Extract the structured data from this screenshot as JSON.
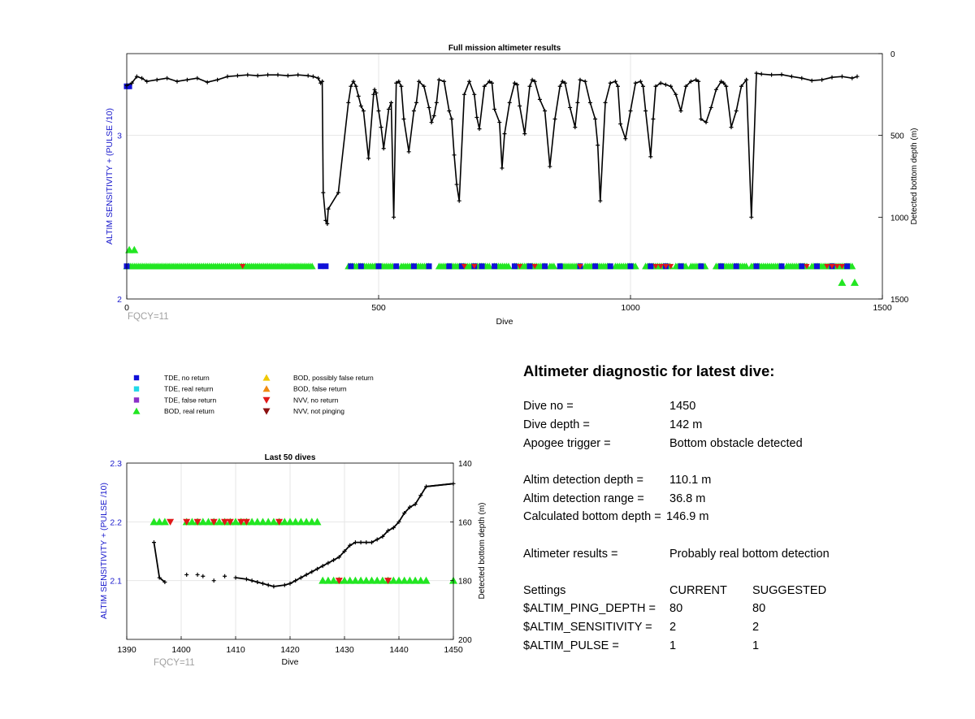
{
  "chart_data": [
    {
      "type": "scatter",
      "title": "Full mission altimeter results",
      "xlabel": "Dive",
      "ylabel": "ALTIM SENSITIVITY + (PULSE /10)",
      "y2label": "Detected bottom depth (m)",
      "xlim": [
        0,
        1500
      ],
      "ylim": [
        2,
        3.5
      ],
      "y2lim": [
        0,
        1500
      ],
      "y2_reversed": true,
      "xticks": [
        "0",
        "500",
        "1000",
        "1500"
      ],
      "yticks": [
        "2",
        "3"
      ],
      "y2ticks": [
        "0",
        "500",
        "1000",
        "1500"
      ],
      "grid": true,
      "fqcy_label": "FQCY=11",
      "series": [
        {
          "name": "Detected bottom depth",
          "axis": "right",
          "x": [
            0,
            10,
            20,
            30,
            40,
            60,
            80,
            100,
            120,
            140,
            160,
            180,
            200,
            220,
            240,
            260,
            280,
            300,
            320,
            340,
            360,
            370,
            380,
            385,
            388,
            390,
            395,
            398,
            400,
            420,
            440,
            445,
            450,
            455,
            460,
            465,
            470,
            480,
            490,
            492,
            495,
            500,
            505,
            510,
            520,
            525,
            530,
            535,
            540,
            545,
            550,
            560,
            570,
            575,
            580,
            590,
            600,
            605,
            610,
            615,
            620,
            630,
            640,
            645,
            650,
            655,
            660,
            670,
            680,
            690,
            695,
            700,
            710,
            720,
            725,
            730,
            740,
            745,
            750,
            760,
            770,
            775,
            780,
            790,
            800,
            805,
            810,
            820,
            830,
            840,
            850,
            860,
            865,
            870,
            880,
            890,
            895,
            900,
            910,
            920,
            930,
            935,
            940,
            950,
            960,
            970,
            975,
            980,
            990,
            1000,
            1010,
            1020,
            1025,
            1030,
            1040,
            1045,
            1050,
            1060,
            1070,
            1080,
            1090,
            1100,
            1110,
            1120,
            1130,
            1135,
            1140,
            1150,
            1160,
            1170,
            1180,
            1185,
            1190,
            1200,
            1210,
            1220,
            1230,
            1240,
            1250,
            1260,
            1280,
            1300,
            1320,
            1340,
            1360,
            1380,
            1400,
            1420,
            1440,
            1450
          ],
          "y": [
            195,
            180,
            140,
            150,
            170,
            160,
            150,
            170,
            160,
            150,
            175,
            160,
            140,
            135,
            130,
            135,
            130,
            130,
            135,
            130,
            135,
            140,
            150,
            180,
            170,
            850,
            1020,
            1040,
            950,
            850,
            300,
            200,
            170,
            200,
            260,
            320,
            350,
            640,
            250,
            220,
            240,
            350,
            450,
            580,
            340,
            300,
            1000,
            180,
            170,
            200,
            400,
            600,
            350,
            300,
            170,
            200,
            330,
            420,
            380,
            300,
            160,
            170,
            350,
            400,
            620,
            800,
            900,
            250,
            170,
            250,
            390,
            460,
            200,
            170,
            180,
            340,
            420,
            700,
            490,
            300,
            180,
            190,
            320,
            490,
            200,
            160,
            170,
            280,
            350,
            690,
            400,
            200,
            170,
            180,
            330,
            450,
            300,
            160,
            170,
            300,
            400,
            560,
            900,
            300,
            180,
            170,
            200,
            430,
            520,
            350,
            180,
            170,
            200,
            350,
            630,
            400,
            200,
            180,
            190,
            200,
            250,
            350,
            200,
            170,
            160,
            170,
            400,
            420,
            330,
            220,
            170,
            180,
            200,
            450,
            350,
            200,
            160,
            1000,
            120,
            125,
            130,
            128,
            140,
            150,
            165,
            160,
            145,
            140,
            150,
            140
          ],
          "color": "#000000"
        }
      ],
      "legend": [
        {
          "label": "TDE, no return",
          "color": "#1010d8",
          "marker": "square"
        },
        {
          "label": "TDE, real return",
          "color": "#20d8e8",
          "marker": "square"
        },
        {
          "label": "TDE, false return",
          "color": "#8a30c8",
          "marker": "square"
        },
        {
          "label": "BOD, real return",
          "color": "#22e622",
          "marker": "triangle-up"
        },
        {
          "label": "BOD, possibly false return",
          "color": "#f0c800",
          "marker": "triangle-up"
        },
        {
          "label": "BOD, false return",
          "color": "#f08a10",
          "marker": "triangle-up"
        },
        {
          "label": "NVV, no return",
          "color": "#e01818",
          "marker": "triangle-down"
        },
        {
          "label": "NVV, not pinging",
          "color": "#8b1010",
          "marker": "triangle-down"
        }
      ],
      "markers": {
        "bod_green": {
          "y": 2.2,
          "segments": [
            [
              0,
              370
            ],
            [
              440,
              460
            ],
            [
              460,
              495
            ],
            [
              495,
              530
            ],
            [
              545,
              570
            ],
            [
              575,
              600
            ],
            [
              620,
              700
            ],
            [
              700,
              720
            ],
            [
              730,
              760
            ],
            [
              770,
              830
            ],
            [
              840,
              850
            ],
            [
              860,
              900
            ],
            [
              910,
              960
            ],
            [
              970,
              1010
            ],
            [
              1030,
              1080
            ],
            [
              1090,
              1110
            ],
            [
              1120,
              1150
            ],
            [
              1170,
              1230
            ],
            [
              1240,
              1300
            ],
            [
              1310,
              1350
            ],
            [
              1360,
              1400
            ],
            [
              1400,
              1440
            ]
          ],
          "extra_y": [
            [
              2.3,
              5
            ],
            [
              2.3,
              15
            ],
            [
              2.1,
              1420
            ],
            [
              2.1,
              1445
            ]
          ]
        },
        "tde_blue": {
          "y": 2.2,
          "x": [
            0,
            385,
            395,
            445,
            465,
            500,
            535,
            570,
            600,
            640,
            665,
            690,
            705,
            730,
            770,
            800,
            830,
            860,
            900,
            930,
            960,
            1000,
            1040,
            1070,
            1100,
            1140,
            1180,
            1210,
            1250,
            1300,
            1340,
            1370,
            1400,
            1430
          ],
          "extra_y": [
            [
              3.3,
              0
            ],
            [
              3.3,
              5
            ]
          ]
        },
        "nvv_red": {
          "y": 2.2,
          "x": [
            230,
            670,
            690,
            780,
            810,
            900,
            1050,
            1060,
            1070,
            1080,
            1350,
            1390,
            1400,
            1410,
            1420
          ]
        }
      }
    },
    {
      "type": "scatter",
      "title": "Last 50 dives",
      "xlabel": "Dive",
      "ylabel": "ALTIM SENSITIVITY + (PULSE /10)",
      "y2label": "Detected bottom depth (m)",
      "xlim": [
        1390,
        1450
      ],
      "ylim": [
        2.0,
        2.3
      ],
      "y2lim": [
        140,
        200
      ],
      "y2_reversed": true,
      "xticks": [
        "1390",
        "1400",
        "1410",
        "1420",
        "1430",
        "1440",
        "1450"
      ],
      "yticks": [
        "2.1",
        "2.2",
        "2.3"
      ],
      "y2ticks": [
        "140",
        "160",
        "180",
        "200"
      ],
      "grid": true,
      "fqcy_label": "FQCY=11",
      "series": [
        {
          "name": "Detected bottom depth",
          "axis": "right",
          "x": [
            1395,
            1396,
            1397,
            1401,
            1403,
            1404,
            1406,
            1408,
            1410,
            1412,
            1413,
            1414,
            1415,
            1416,
            1417,
            1419,
            1420,
            1421,
            1422,
            1423,
            1424,
            1425,
            1426,
            1427,
            1428,
            1429,
            1430,
            1431,
            1432,
            1433,
            1434,
            1435,
            1436,
            1437,
            1438,
            1439,
            1440,
            1441,
            1442,
            1443,
            1444,
            1445,
            1450
          ],
          "y": [
            167,
            179,
            180.5,
            178,
            178,
            178.5,
            180,
            178.5,
            179,
            179.5,
            180,
            180.5,
            181,
            181.5,
            182,
            181.5,
            181,
            180,
            179,
            178,
            177,
            176,
            175,
            174,
            173,
            172,
            170,
            168,
            167,
            167,
            167,
            167,
            166,
            165,
            163,
            162,
            160,
            157,
            155,
            154,
            151,
            148,
            147
          ],
          "color": "#000000"
        },
        {
          "name": "BOD, real return",
          "axis": "left",
          "x": [
            1395,
            1396,
            1397,
            1401,
            1402,
            1403,
            1404,
            1405,
            1406,
            1407,
            1408,
            1409,
            1410,
            1411,
            1412,
            1413,
            1414,
            1415,
            1416,
            1417,
            1418,
            1419,
            1420,
            1421,
            1422,
            1423,
            1424,
            1425,
            1426,
            1427,
            1428,
            1429,
            1430,
            1431,
            1432,
            1433,
            1434,
            1435,
            1436,
            1437,
            1438,
            1439,
            1440,
            1441,
            1442,
            1443,
            1444,
            1445,
            1450
          ],
          "y": [
            2.2,
            2.2,
            2.2,
            2.2,
            2.2,
            2.2,
            2.2,
            2.2,
            2.2,
            2.2,
            2.2,
            2.2,
            2.2,
            2.2,
            2.2,
            2.2,
            2.2,
            2.2,
            2.2,
            2.2,
            2.2,
            2.2,
            2.2,
            2.2,
            2.2,
            2.2,
            2.2,
            2.2,
            2.1,
            2.1,
            2.1,
            2.1,
            2.1,
            2.1,
            2.1,
            2.1,
            2.1,
            2.1,
            2.1,
            2.1,
            2.1,
            2.1,
            2.1,
            2.1,
            2.1,
            2.1,
            2.1,
            2.1,
            2.1
          ],
          "color": "#22e622"
        },
        {
          "name": "NVV, no return",
          "axis": "left",
          "x": [
            1398,
            1401,
            1403,
            1406,
            1408,
            1409,
            1411,
            1412,
            1418,
            1429,
            1438
          ],
          "y": [
            2.2,
            2.2,
            2.2,
            2.2,
            2.2,
            2.2,
            2.2,
            2.2,
            2.2,
            2.1,
            2.1
          ],
          "color": "#e01818"
        }
      ]
    }
  ],
  "diagnostic": {
    "title": "Altimeter diagnostic for latest dive:",
    "rows": [
      {
        "label": "Dive no =",
        "value": "1450"
      },
      {
        "label": "Dive depth =",
        "value": "142 m"
      },
      {
        "label": "Apogee trigger =",
        "value": "Bottom obstacle detected"
      },
      {
        "label": "Altim detection depth =",
        "value": "110.1 m"
      },
      {
        "label": "Altim detection range =",
        "value": "36.8 m"
      },
      {
        "label": "Calculated bottom depth =",
        "value": "146.9 m"
      },
      {
        "label": "Altimeter results =",
        "value": "Probably real bottom detection"
      }
    ],
    "settings": {
      "header": {
        "label": "Settings",
        "current": "CURRENT",
        "suggested": "SUGGESTED"
      },
      "rows": [
        {
          "label": "$ALTIM_PING_DEPTH =",
          "current": "80",
          "suggested": "80"
        },
        {
          "label": "$ALTIM_SENSITIVITY =",
          "current": "2",
          "suggested": "2"
        },
        {
          "label": "$ALTIM_PULSE =",
          "current": "1",
          "suggested": "1"
        }
      ]
    }
  }
}
